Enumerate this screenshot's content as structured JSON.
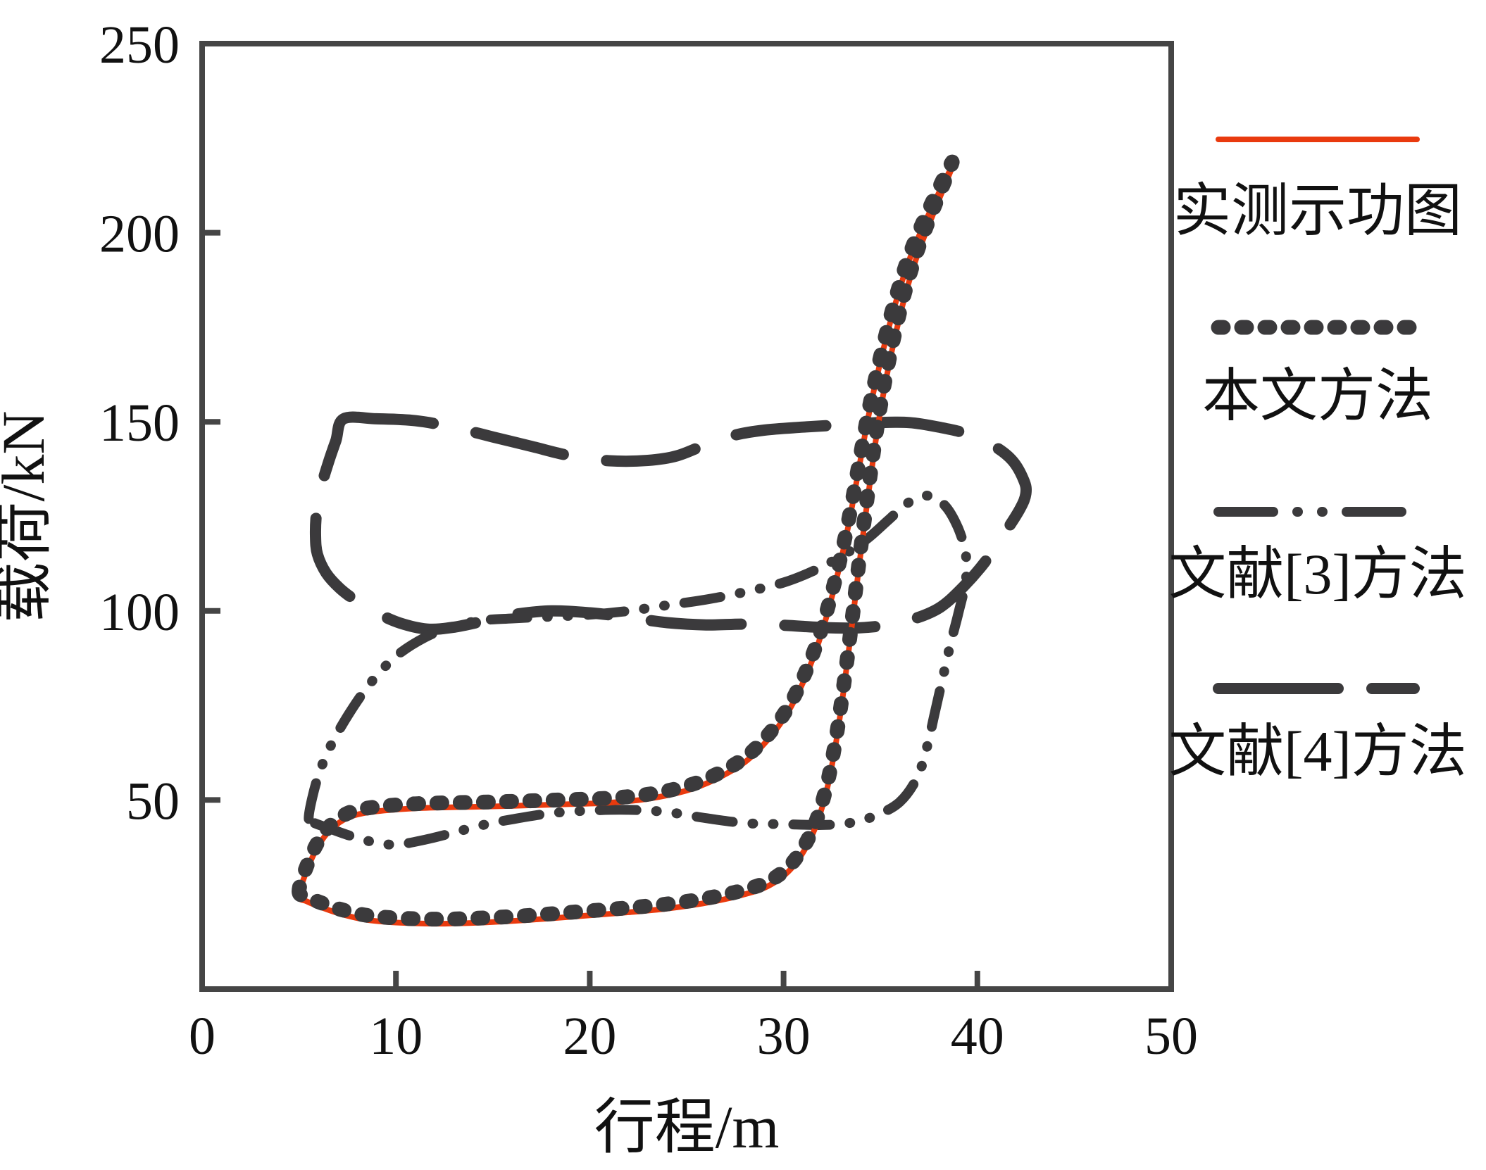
{
  "figure": {
    "type_label": "dynamometer-card-comparison-plot"
  },
  "chart_data": {
    "type": "line",
    "title": "",
    "xlabel": "行程/m",
    "ylabel": "载荷/kN",
    "xlim": [
      0,
      50
    ],
    "ylim": [
      0,
      250
    ],
    "x_ticks": [
      0,
      10,
      20,
      30,
      40,
      50
    ],
    "y_ticks": [
      50,
      100,
      150,
      200,
      250
    ],
    "grid": false,
    "legend_position": "right-outside",
    "colors": {
      "measured_red": "#e93a0e",
      "dark_gray": "#3b3a3c",
      "axis": "#454545"
    },
    "series": [
      {
        "name": "文献[4]方法",
        "style": "long-dash",
        "color": "#3b3a3c",
        "width": 16,
        "closed": true,
        "points": [
          [
            7.3,
            150.8
          ],
          [
            9,
            150.8
          ],
          [
            11,
            150.3
          ],
          [
            13,
            148.5
          ],
          [
            15,
            146
          ],
          [
            17,
            143.5
          ],
          [
            19,
            141
          ],
          [
            21,
            139.7
          ],
          [
            23,
            139.8
          ],
          [
            24.5,
            141
          ],
          [
            26,
            144
          ],
          [
            27.5,
            146.5
          ],
          [
            29,
            147.8
          ],
          [
            31,
            148.6
          ],
          [
            33,
            149.2
          ],
          [
            35,
            149.8
          ],
          [
            36.5,
            149.8
          ],
          [
            38,
            148.6
          ],
          [
            39.5,
            146.8
          ],
          [
            40.8,
            143.8
          ],
          [
            41.8,
            139.8
          ],
          [
            42.4,
            134.5
          ],
          [
            42.5,
            131
          ],
          [
            42.2,
            127
          ],
          [
            41.4,
            120.5
          ],
          [
            40.4,
            113
          ],
          [
            39.3,
            106.5
          ],
          [
            38.1,
            101
          ],
          [
            36.8,
            98
          ],
          [
            35.4,
            96.3
          ],
          [
            33.8,
            95.5
          ],
          [
            32,
            95.6
          ],
          [
            30,
            96.2
          ],
          [
            28,
            96.5
          ],
          [
            26,
            96.3
          ],
          [
            24,
            96.9
          ],
          [
            22,
            98.3
          ],
          [
            20,
            99.5
          ],
          [
            18,
            100
          ],
          [
            16,
            99
          ],
          [
            14.5,
            97.3
          ],
          [
            13,
            95.7
          ],
          [
            11.6,
            95.2
          ],
          [
            10.2,
            96.8
          ],
          [
            9,
            99.5
          ],
          [
            8,
            102.5
          ],
          [
            7.1,
            106
          ],
          [
            6.4,
            110
          ],
          [
            5.95,
            115
          ],
          [
            5.85,
            120
          ],
          [
            5.9,
            126
          ],
          [
            6.1,
            132
          ],
          [
            6.5,
            139
          ],
          [
            6.9,
            145
          ]
        ]
      },
      {
        "name": "文献[3]方法",
        "style": "dash-dot-dot",
        "color": "#3b3a3c",
        "width": 14,
        "closed": true,
        "points": [
          [
            5.5,
            45
          ],
          [
            5.7,
            51
          ],
          [
            6.1,
            58
          ],
          [
            6.7,
            65
          ],
          [
            7.6,
            73
          ],
          [
            8.7,
            81
          ],
          [
            10,
            88
          ],
          [
            11.5,
            93
          ],
          [
            13,
            96
          ],
          [
            14.5,
            97.5
          ],
          [
            16,
            98
          ],
          [
            18,
            98.5
          ],
          [
            20,
            99
          ],
          [
            22,
            100
          ],
          [
            24,
            101.5
          ],
          [
            26,
            103
          ],
          [
            28,
            105
          ],
          [
            30,
            107.5
          ],
          [
            31.5,
            110.5
          ],
          [
            33,
            114.5
          ],
          [
            34.3,
            119
          ],
          [
            35.4,
            124
          ],
          [
            36.4,
            128.5
          ],
          [
            37.4,
            130.5
          ],
          [
            38.3,
            128
          ],
          [
            39,
            122
          ],
          [
            39.4,
            115
          ],
          [
            39.4,
            108
          ],
          [
            39,
            99
          ],
          [
            38.6,
            91
          ],
          [
            38.2,
            82
          ],
          [
            37.8,
            73
          ],
          [
            37.4,
            64
          ],
          [
            36.9,
            56
          ],
          [
            36,
            49.5
          ],
          [
            34.8,
            46
          ],
          [
            33.5,
            44
          ],
          [
            32,
            43.4
          ],
          [
            30,
            43.6
          ],
          [
            28,
            43.9
          ],
          [
            26,
            45.2
          ],
          [
            24,
            46.8
          ],
          [
            22,
            47.4
          ],
          [
            20,
            47.2
          ],
          [
            18,
            46.5
          ],
          [
            16,
            44.9
          ],
          [
            14.5,
            43.4
          ],
          [
            13,
            41.4
          ],
          [
            11.5,
            39.5
          ],
          [
            10,
            38.2
          ],
          [
            8.8,
            38.9
          ],
          [
            7.6,
            40.6
          ],
          [
            6.5,
            42.6
          ],
          [
            5.8,
            43.9
          ]
        ]
      },
      {
        "name": "实测示功图",
        "style": "solid",
        "color": "#e93a0e",
        "width": 8,
        "closed": true,
        "points": [
          [
            5.0,
            24.5
          ],
          [
            5.3,
            30
          ],
          [
            5.9,
            37
          ],
          [
            6.6,
            42
          ],
          [
            7.6,
            45.5
          ],
          [
            9,
            47
          ],
          [
            11,
            47.8
          ],
          [
            13,
            48.1
          ],
          [
            15,
            48.3
          ],
          [
            17,
            48.6
          ],
          [
            19,
            48.9
          ],
          [
            21,
            49.3
          ],
          [
            23,
            50.3
          ],
          [
            25,
            52.5
          ],
          [
            26.5,
            55.5
          ],
          [
            28,
            60
          ],
          [
            29.2,
            66
          ],
          [
            30.2,
            73
          ],
          [
            31,
            81
          ],
          [
            31.7,
            90
          ],
          [
            32.3,
            100
          ],
          [
            32.9,
            112
          ],
          [
            33.4,
            124
          ],
          [
            33.9,
            138
          ],
          [
            34.4,
            152
          ],
          [
            35.0,
            166
          ],
          [
            35.7,
            180
          ],
          [
            36.5,
            193
          ],
          [
            37.5,
            205
          ],
          [
            38.7,
            217.5
          ],
          [
            37.8,
            206
          ],
          [
            36.9,
            194
          ],
          [
            36.2,
            182
          ],
          [
            35.6,
            169
          ],
          [
            35.1,
            156
          ],
          [
            34.7,
            143
          ],
          [
            34.3,
            128
          ],
          [
            33.9,
            112
          ],
          [
            33.5,
            95
          ],
          [
            33.1,
            79
          ],
          [
            32.7,
            65
          ],
          [
            32.2,
            52
          ],
          [
            31.5,
            41
          ],
          [
            30.5,
            32.5
          ],
          [
            29.3,
            27.5
          ],
          [
            27.8,
            24.8
          ],
          [
            26,
            22.8
          ],
          [
            24,
            21.3
          ],
          [
            22,
            20.3
          ],
          [
            20,
            19.5
          ],
          [
            18,
            18.7
          ],
          [
            16,
            18
          ],
          [
            14,
            17.5
          ],
          [
            12,
            17.3
          ],
          [
            10,
            17.6
          ],
          [
            8.5,
            18.3
          ],
          [
            7.2,
            19.8
          ],
          [
            6.1,
            21.7
          ],
          [
            5.4,
            23.2
          ]
        ]
      },
      {
        "name": "本文方法",
        "style": "dotted",
        "color": "#3b3a3c",
        "width": 21,
        "closed": true,
        "points": [
          [
            5.0,
            25.7
          ],
          [
            5.3,
            31.2
          ],
          [
            5.9,
            38.2
          ],
          [
            6.6,
            43.2
          ],
          [
            7.6,
            46.7
          ],
          [
            9,
            48.2
          ],
          [
            11,
            49.0
          ],
          [
            13,
            49.3
          ],
          [
            15,
            49.5
          ],
          [
            17,
            49.8
          ],
          [
            19,
            50.1
          ],
          [
            21,
            50.5
          ],
          [
            23,
            51.5
          ],
          [
            25,
            53.7
          ],
          [
            26.5,
            56.7
          ],
          [
            28,
            61.2
          ],
          [
            29.2,
            67.2
          ],
          [
            30.2,
            74.2
          ],
          [
            31,
            82.2
          ],
          [
            31.7,
            91.2
          ],
          [
            32.3,
            101.2
          ],
          [
            32.9,
            113.2
          ],
          [
            33.4,
            125.2
          ],
          [
            33.9,
            139.2
          ],
          [
            34.4,
            153.2
          ],
          [
            35,
            167.2
          ],
          [
            35.7,
            181.2
          ],
          [
            36.5,
            194.2
          ],
          [
            37.5,
            206.2
          ],
          [
            38.7,
            218.7
          ],
          [
            37.8,
            207.2
          ],
          [
            36.9,
            195.2
          ],
          [
            36.2,
            183.2
          ],
          [
            35.6,
            170.2
          ],
          [
            35.1,
            157.2
          ],
          [
            34.7,
            144.2
          ],
          [
            34.3,
            129.2
          ],
          [
            33.9,
            113.2
          ],
          [
            33.5,
            96.2
          ],
          [
            33.1,
            80.2
          ],
          [
            32.7,
            66.2
          ],
          [
            32.2,
            53.2
          ],
          [
            31.5,
            42.2
          ],
          [
            30.5,
            33.7
          ],
          [
            29.3,
            28.7
          ],
          [
            27.8,
            26
          ],
          [
            26,
            24
          ],
          [
            24,
            22.5
          ],
          [
            22,
            21.5
          ],
          [
            20,
            20.7
          ],
          [
            18,
            19.9
          ],
          [
            16,
            19.2
          ],
          [
            14,
            18.7
          ],
          [
            12,
            18.5
          ],
          [
            10,
            18.8
          ],
          [
            8.5,
            19.5
          ],
          [
            7.2,
            21
          ],
          [
            6.1,
            22.9
          ],
          [
            5.4,
            24.4
          ]
        ]
      }
    ],
    "legend": [
      {
        "label": "实测示功图",
        "series": "实测示功图"
      },
      {
        "label": "本文方法",
        "series": "本文方法"
      },
      {
        "label": "文献[3]方法",
        "series": "文献[3]方法"
      },
      {
        "label": "文献[4]方法",
        "series": "文献[4]方法"
      }
    ]
  }
}
